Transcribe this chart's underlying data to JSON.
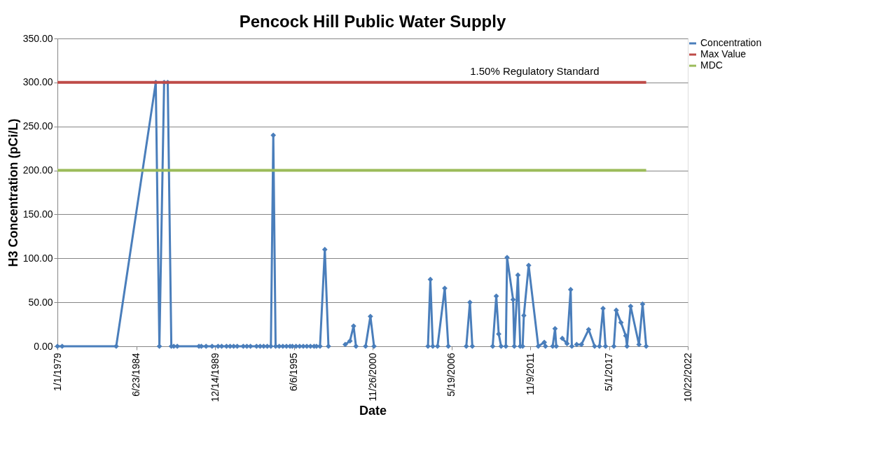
{
  "chart_data": {
    "type": "line",
    "title": "Pencock Hill Public Water Supply",
    "xlabel": "Date",
    "ylabel": "H3 Concentration (pCi/L)",
    "xlim": [
      "1979-01-01",
      "2022-10-22"
    ],
    "xticks": [
      {
        "value": "1979-01-01",
        "label": "1/1/1979"
      },
      {
        "value": "1984-06-23",
        "label": "6/23/1984"
      },
      {
        "value": "1989-12-14",
        "label": "12/14/1989"
      },
      {
        "value": "1995-06-06",
        "label": "6/6/1995"
      },
      {
        "value": "2000-11-26",
        "label": "11/26/2000"
      },
      {
        "value": "2006-05-19",
        "label": "5/19/2006"
      },
      {
        "value": "2011-11-09",
        "label": "11/9/2011"
      },
      {
        "value": "2017-05-01",
        "label": "5/1/2017"
      },
      {
        "value": "2022-10-22",
        "label": "10/22/2022"
      }
    ],
    "ylim": [
      0,
      350
    ],
    "yticks": [
      {
        "value": 0,
        "label": "0.00"
      },
      {
        "value": 50,
        "label": "50.00"
      },
      {
        "value": 100,
        "label": "100.00"
      },
      {
        "value": 150,
        "label": "150.00"
      },
      {
        "value": 200,
        "label": "200.00"
      },
      {
        "value": 250,
        "label": "250.00"
      },
      {
        "value": 300,
        "label": "300.00"
      },
      {
        "value": 350,
        "label": "350.00"
      }
    ],
    "grid": "y",
    "legend": "right",
    "line_style": "solid",
    "annotations": [
      {
        "text": "1.50% Regulatory Standard",
        "x": "2012-03",
        "y": 300
      }
    ],
    "series": [
      {
        "name": "Concentration",
        "color": "#4a7ebb",
        "marker": "diamond",
        "x": [
          "1979-01",
          "1979-05",
          "1983-02",
          "1985-11",
          "1986-02",
          "1986-06",
          "1986-09",
          "1986-12",
          "1987-02",
          "1987-05",
          "1988-11",
          "1989-01",
          "1989-05",
          "1989-10",
          "1990-03",
          "1990-06",
          "1990-10",
          "1991-01",
          "1991-04",
          "1991-07",
          "1991-12",
          "1992-03",
          "1992-06",
          "1992-11",
          "1993-02",
          "1993-05",
          "1993-08",
          "1993-11",
          "1994-01",
          "1994-03",
          "1994-06",
          "1994-09",
          "1994-12",
          "1995-03",
          "1995-05",
          "1995-08",
          "1995-11",
          "1996-02",
          "1996-05",
          "1996-08",
          "1996-11",
          "1997-01",
          "1997-04",
          "1997-08",
          "1997-11",
          "1998-06",
          "1999-01",
          "1999-05",
          "1999-08",
          "1999-10",
          "2000-02",
          "2000-06",
          "2000-10",
          "2001-01",
          "2003-01",
          "2004-10",
          "2004-12",
          "2005-02",
          "2005-04",
          "2005-06",
          "2005-12",
          "2006-03",
          "2006-10",
          "2007-06",
          "2007-09",
          "2007-11",
          "2008-08",
          "2009-04",
          "2009-07",
          "2009-09",
          "2009-11",
          "2010-01",
          "2010-03",
          "2010-04",
          "2010-09",
          "2010-10",
          "2011-01",
          "2011-03",
          "2011-04",
          "2011-05",
          "2011-06",
          "2011-10",
          "2012-06",
          "2012-11",
          "2012-12",
          "2013-03",
          "2013-06",
          "2013-08",
          "2013-09",
          "2013-12",
          "2014-02",
          "2014-06",
          "2014-09",
          "2014-10",
          "2014-12",
          "2015-02",
          "2015-06",
          "2015-12",
          "2016-05",
          "2016-07",
          "2016-09",
          "2016-12",
          "2017-02",
          "2017-06",
          "2017-09",
          "2017-11",
          "2018-03",
          "2018-07",
          "2018-08",
          "2018-11",
          "2019-06",
          "2019-09",
          "2019-12"
        ],
        "values": [
          0,
          0,
          0,
          300,
          0,
          300,
          300,
          0,
          0,
          0,
          0,
          0,
          0,
          0,
          0,
          0,
          0,
          0,
          0,
          0,
          0,
          0,
          0,
          0,
          0,
          0,
          0,
          0,
          240,
          0,
          0,
          0,
          0,
          0,
          0,
          0,
          0,
          0,
          0,
          0,
          0,
          0,
          0,
          110,
          0,
          null,
          2,
          6,
          23,
          0,
          null,
          0,
          34,
          0,
          null,
          0,
          76,
          0,
          null,
          0,
          66,
          0,
          null,
          0,
          50,
          0,
          null,
          0,
          57,
          14,
          0,
          null,
          0,
          101,
          53,
          0,
          81,
          0,
          null,
          0,
          35,
          92,
          0,
          4.5,
          0,
          null,
          0,
          20,
          0,
          null,
          9,
          3,
          64.5,
          0,
          null,
          2,
          2,
          19,
          0,
          null,
          0,
          43,
          0,
          null,
          0,
          41,
          27,
          12,
          0,
          45.5,
          2,
          48,
          0
        ]
      },
      {
        "name": "Max Value",
        "color": "#be4b48",
        "marker": "none",
        "x": [
          "1979-01",
          "2019-12"
        ],
        "values": [
          300,
          300
        ]
      },
      {
        "name": "MDC",
        "color": "#9bbb59",
        "marker": "none",
        "x": [
          "1979-01",
          "2019-12"
        ],
        "values": [
          200,
          200
        ]
      }
    ]
  }
}
